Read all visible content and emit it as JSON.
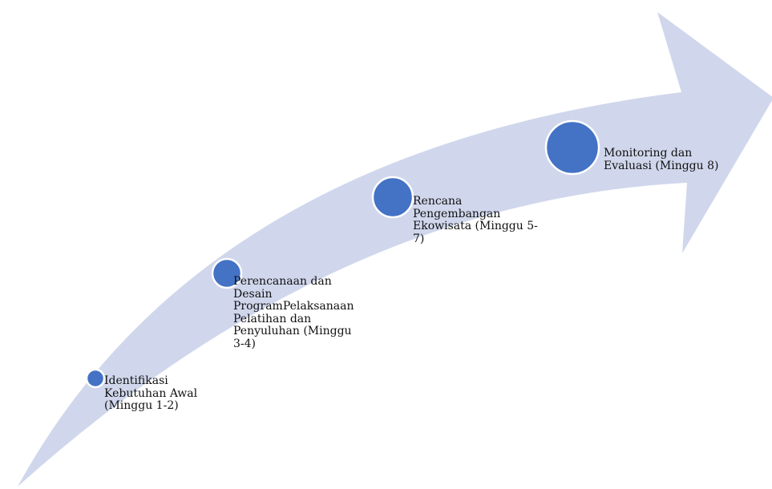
{
  "colors": {
    "arrow_fill": "#d0d7ec",
    "circle_fill": "#4472c4",
    "circle_stroke": "#ffffff",
    "label_text": "#111111"
  },
  "stages": [
    {
      "label": "Identifikasi\nKebutuhan Awal\n(Minggu 1-2)"
    },
    {
      "label": "Perencanaan dan\nDesain\nProgramPelaksanaan\nPelatihan dan\nPenyuluhan (Minggu\n3-4)"
    },
    {
      "label": "Rencana\nPengembangan\nEkowisata (Minggu 5-\n7)"
    },
    {
      "label": "Monitoring dan\nEvaluasi (Minggu 8)"
    }
  ]
}
